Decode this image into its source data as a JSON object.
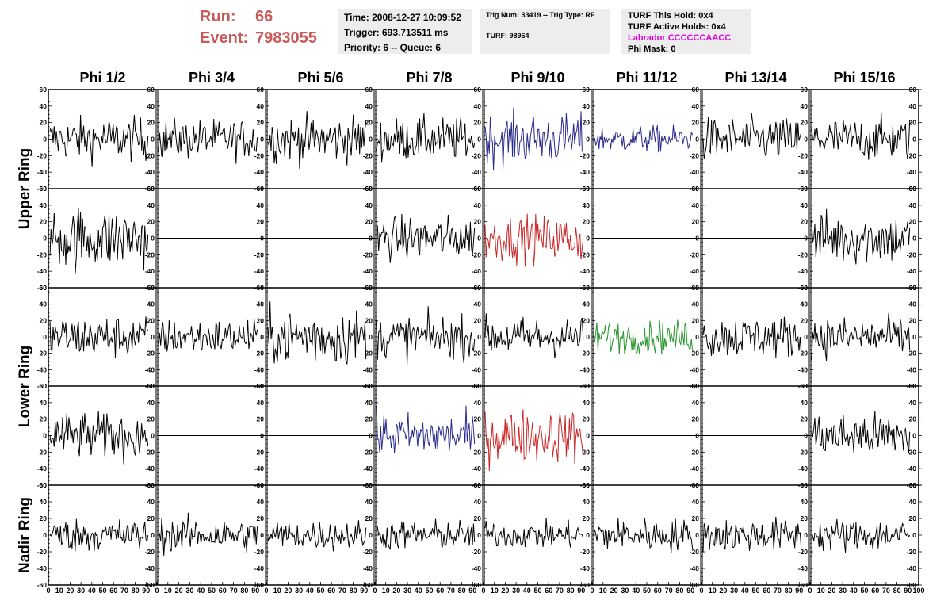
{
  "header": {
    "run_label": "Run:",
    "run_value": "66",
    "event_label": "Event:",
    "event_value": "7983055"
  },
  "info_time": {
    "time": "Time: 2008-12-27 10:09:52",
    "trigger": "Trigger: 693.713511 ms",
    "priority": "Priority: 6 -- Queue: 6"
  },
  "info_trig": {
    "trig": "Trig Num: 33419 -- Trig Type: RF",
    "turf": "TURF: 98964"
  },
  "info_turf": {
    "this_hold": "TURF This Hold: 0x4",
    "active_holds": "TURF Active Holds: 0x4",
    "labrador": "Labrador CCCCCCAACC",
    "phi_mask": "Phi Mask: 0"
  },
  "chart_data": {
    "type": "line",
    "columns": [
      "Phi 1/2",
      "Phi 3/4",
      "Phi 5/6",
      "Phi 7/8",
      "Phi 9/10",
      "Phi 11/12",
      "Phi 13/14",
      "Phi 15/16"
    ],
    "ring_labels": [
      {
        "label": "Upper Ring",
        "rows": [
          0,
          1
        ]
      },
      {
        "label": "Lower Ring",
        "rows": [
          2,
          3
        ]
      },
      {
        "label": "Nadir Ring",
        "rows": [
          4
        ]
      }
    ],
    "xlim": [
      0,
      100
    ],
    "ylim": [
      -60,
      60
    ],
    "y_ticks": [
      -60,
      -40,
      -20,
      0,
      20,
      40,
      60
    ],
    "x_ticks": [
      0,
      10,
      20,
      30,
      40,
      50,
      60,
      70,
      80,
      90,
      100
    ],
    "samples": 94,
    "colors": {
      "normal": "#000000",
      "blue": "#2a2a8c",
      "red": "#c82828",
      "green": "#28962d"
    },
    "panels": [
      [
        {
          "color": "normal",
          "amp": 13,
          "flat": false
        },
        {
          "color": "normal",
          "amp": 12,
          "flat": false
        },
        {
          "color": "normal",
          "amp": 14,
          "flat": false
        },
        {
          "color": "normal",
          "amp": 13,
          "flat": false
        },
        {
          "color": "blue",
          "amp": 15,
          "flat": false
        },
        {
          "color": "blue",
          "amp": 8,
          "flat": false
        },
        {
          "color": "normal",
          "amp": 13,
          "flat": false
        },
        {
          "color": "normal",
          "amp": 13,
          "flat": false
        }
      ],
      [
        {
          "color": "normal",
          "amp": 19,
          "flat": false
        },
        {
          "color": "normal",
          "amp": 0,
          "flat": true
        },
        {
          "color": "normal",
          "amp": 0,
          "flat": true
        },
        {
          "color": "normal",
          "amp": 13,
          "flat": false
        },
        {
          "color": "red",
          "amp": 14,
          "flat": false
        },
        {
          "color": "normal",
          "amp": 0,
          "flat": true
        },
        {
          "color": "normal",
          "amp": 0,
          "flat": true
        },
        {
          "color": "normal",
          "amp": 16,
          "flat": false
        }
      ],
      [
        {
          "color": "normal",
          "amp": 13,
          "flat": false
        },
        {
          "color": "normal",
          "amp": 11,
          "flat": false
        },
        {
          "color": "normal",
          "amp": 17,
          "flat": false
        },
        {
          "color": "normal",
          "amp": 13,
          "flat": false
        },
        {
          "color": "normal",
          "amp": 12,
          "flat": false
        },
        {
          "color": "green",
          "amp": 10,
          "flat": false
        },
        {
          "color": "normal",
          "amp": 13,
          "flat": false
        },
        {
          "color": "normal",
          "amp": 12,
          "flat": false
        }
      ],
      [
        {
          "color": "normal",
          "amp": 14,
          "flat": false
        },
        {
          "color": "normal",
          "amp": 0,
          "flat": true
        },
        {
          "color": "normal",
          "amp": 0,
          "flat": true
        },
        {
          "color": "blue",
          "amp": 13,
          "flat": false
        },
        {
          "color": "red",
          "amp": 16,
          "flat": false
        },
        {
          "color": "normal",
          "amp": 0,
          "flat": true
        },
        {
          "color": "normal",
          "amp": 0,
          "flat": true
        },
        {
          "color": "normal",
          "amp": 14,
          "flat": false
        }
      ],
      [
        {
          "color": "normal",
          "amp": 10,
          "flat": false
        },
        {
          "color": "normal",
          "amp": 10,
          "flat": false
        },
        {
          "color": "normal",
          "amp": 9,
          "flat": false
        },
        {
          "color": "normal",
          "amp": 9,
          "flat": false
        },
        {
          "color": "normal",
          "amp": 8,
          "flat": false
        },
        {
          "color": "normal",
          "amp": 10,
          "flat": false
        },
        {
          "color": "normal",
          "amp": 10,
          "flat": false
        },
        {
          "color": "normal",
          "amp": 10,
          "flat": false
        }
      ]
    ]
  }
}
